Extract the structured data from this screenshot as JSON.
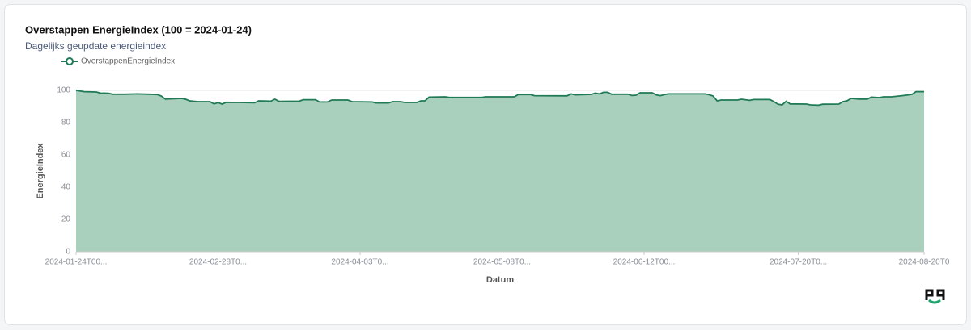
{
  "chart_data": {
    "type": "area",
    "title": "Overstappen EnergieIndex (100 = 2024-01-24)",
    "subtitle": "Dagelijks geupdate energieindex",
    "x_label": "Datum",
    "y_label": "EnergieIndex",
    "x": [
      "2024-01-24",
      "2024-01-26",
      "2024-01-29",
      "2024-01-30",
      "2024-02-01",
      "2024-02-02",
      "2024-02-05",
      "2024-02-08",
      "2024-02-11",
      "2024-02-13",
      "2024-02-14",
      "2024-02-15",
      "2024-02-19",
      "2024-02-20",
      "2024-02-21",
      "2024-02-23",
      "2024-02-26",
      "2024-02-27",
      "2024-02-28",
      "2024-02-29",
      "2024-03-01",
      "2024-03-04",
      "2024-03-08",
      "2024-03-09",
      "2024-03-12",
      "2024-03-13",
      "2024-03-14",
      "2024-03-19",
      "2024-03-20",
      "2024-03-23",
      "2024-03-24",
      "2024-03-26",
      "2024-03-27",
      "2024-03-31",
      "2024-04-01",
      "2024-04-06",
      "2024-04-07",
      "2024-04-10",
      "2024-04-11",
      "2024-04-13",
      "2024-04-14",
      "2024-04-17",
      "2024-04-18",
      "2024-04-19",
      "2024-04-20",
      "2024-04-24",
      "2024-04-25",
      "2024-05-03",
      "2024-05-04",
      "2024-05-11",
      "2024-05-12",
      "2024-05-15",
      "2024-05-16",
      "2024-05-24",
      "2024-05-25",
      "2024-05-26",
      "2024-05-30",
      "2024-05-31",
      "2024-06-01",
      "2024-06-02",
      "2024-06-03",
      "2024-06-04",
      "2024-06-08",
      "2024-06-09",
      "2024-06-10",
      "2024-06-11",
      "2024-06-14",
      "2024-06-15",
      "2024-06-16",
      "2024-06-17",
      "2024-06-18",
      "2024-06-27",
      "2024-06-28",
      "2024-06-29",
      "2024-06-30",
      "2024-07-01",
      "2024-07-05",
      "2024-07-06",
      "2024-07-08",
      "2024-07-09",
      "2024-07-13",
      "2024-07-14",
      "2024-07-15",
      "2024-07-16",
      "2024-07-17",
      "2024-07-18",
      "2024-07-22",
      "2024-07-23",
      "2024-07-25",
      "2024-07-26",
      "2024-07-30",
      "2024-07-31",
      "2024-08-01",
      "2024-08-02",
      "2024-08-04",
      "2024-08-06",
      "2024-08-07",
      "2024-08-09",
      "2024-08-10",
      "2024-08-12",
      "2024-08-15",
      "2024-08-17",
      "2024-08-18",
      "2024-08-20"
    ],
    "series": [
      {
        "name": "OverstappenEnergieIndex",
        "color": "#1f7a55",
        "fill": "#a9cfbd",
        "values": [
          100,
          99.2,
          99,
          98.3,
          98.2,
          97.6,
          97.6,
          97.8,
          97.6,
          97.4,
          96.5,
          94.6,
          95,
          94.5,
          93.5,
          93,
          93,
          91.6,
          92.4,
          91.5,
          92.6,
          92.5,
          92.3,
          93.5,
          93.3,
          94.5,
          93.2,
          93.3,
          94.2,
          94.2,
          92.8,
          92.8,
          94,
          94,
          93,
          92.8,
          92.2,
          92.2,
          93,
          93,
          92.5,
          92.5,
          93.5,
          93.5,
          95.8,
          96,
          95.6,
          95.6,
          96,
          96,
          97.4,
          97.4,
          96.7,
          96.6,
          97.8,
          97.2,
          97.5,
          98.3,
          97.8,
          98.8,
          98.8,
          97.6,
          97.6,
          96.8,
          97,
          98.5,
          98.5,
          97.2,
          96.7,
          97.4,
          97.8,
          97.8,
          97.3,
          96.5,
          93.5,
          94,
          94,
          94.5,
          93.8,
          94.3,
          94.3,
          93,
          91.4,
          91,
          93.2,
          91.6,
          91.5,
          91,
          90.8,
          91.4,
          91.5,
          93,
          93.5,
          95,
          94.6,
          94.6,
          95.8,
          95.5,
          96,
          96,
          96.8,
          97.5,
          99.2,
          99.2
        ]
      }
    ],
    "xlim": [
      "2024-01-24",
      "2024-08-20"
    ],
    "xticks": [
      {
        "value": "2024-01-24",
        "label": "2024-01-24T00..."
      },
      {
        "value": "2024-02-28",
        "label": "2024-02-28T0..."
      },
      {
        "value": "2024-04-03",
        "label": "2024-04-03T0..."
      },
      {
        "value": "2024-05-08",
        "label": "2024-05-08T0..."
      },
      {
        "value": "2024-06-12",
        "label": "2024-06-12T00..."
      },
      {
        "value": "2024-07-20",
        "label": "2024-07-20T0..."
      },
      {
        "value": "2024-08-20",
        "label": "2024-08-20T0"
      }
    ],
    "ylim": [
      0,
      100
    ],
    "yticks": [
      0,
      20,
      40,
      60,
      80,
      100
    ],
    "grid": true
  }
}
